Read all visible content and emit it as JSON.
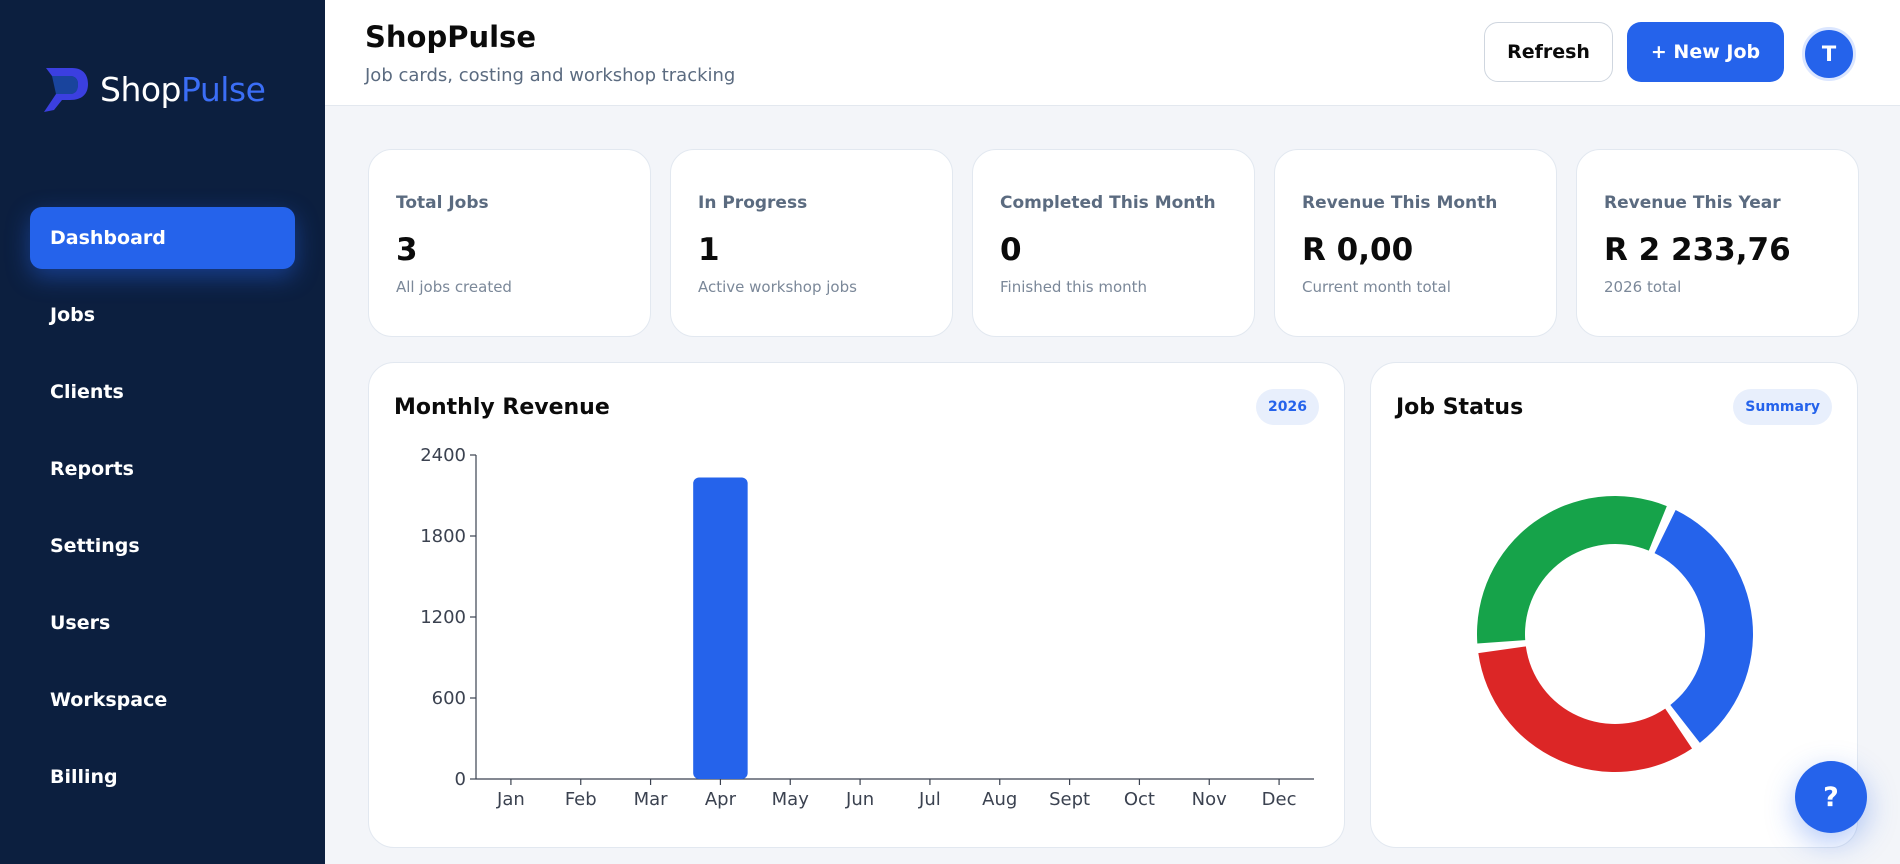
{
  "brand": {
    "name_part1": "Shop",
    "name_part2": "Pulse"
  },
  "nav": {
    "items": [
      {
        "label": "Dashboard",
        "active": true
      },
      {
        "label": "Jobs"
      },
      {
        "label": "Clients"
      },
      {
        "label": "Reports"
      },
      {
        "label": "Settings"
      },
      {
        "label": "Users"
      },
      {
        "label": "Workspace"
      },
      {
        "label": "Billing"
      }
    ]
  },
  "header": {
    "title": "ShopPulse",
    "subtitle": "Job cards, costing and workshop tracking",
    "refresh_label": "Refresh",
    "new_job_label": "+ New Job",
    "avatar_initial": "T"
  },
  "stats": [
    {
      "label": "Total Jobs",
      "value": "3",
      "sub": "All jobs created"
    },
    {
      "label": "In Progress",
      "value": "1",
      "sub": "Active workshop jobs"
    },
    {
      "label": "Completed This Month",
      "value": "0",
      "sub": "Finished this month"
    },
    {
      "label": "Revenue This Month",
      "value": "R 0,00",
      "sub": "Current month total"
    },
    {
      "label": "Revenue This Year",
      "value": "R 2 233,76",
      "sub": "2026 total"
    }
  ],
  "revenue_card": {
    "title": "Monthly Revenue",
    "badge": "2026"
  },
  "status_card": {
    "title": "Job Status",
    "badge": "Summary"
  },
  "help_label": "?",
  "colors": {
    "accent": "#2563eb",
    "sidebar": "#0c1f3f",
    "green": "#16a34a",
    "red": "#dc2626"
  },
  "chart_data": [
    {
      "type": "bar",
      "categories": [
        "Jan",
        "Feb",
        "Mar",
        "Apr",
        "May",
        "Jun",
        "Jul",
        "Aug",
        "Sept",
        "Oct",
        "Nov",
        "Dec"
      ],
      "values": [
        0,
        0,
        0,
        2233.76,
        0,
        0,
        0,
        0,
        0,
        0,
        0,
        0
      ],
      "yticks": [
        0,
        600,
        1200,
        1800,
        2400
      ],
      "ylim": [
        0,
        2400
      ],
      "color": "#2563eb"
    },
    {
      "type": "pie",
      "donut": true,
      "slices": [
        {
          "value": 1,
          "color": "#2563eb"
        },
        {
          "value": 1,
          "color": "#dc2626"
        },
        {
          "value": 1,
          "color": "#16a34a"
        }
      ]
    }
  ]
}
